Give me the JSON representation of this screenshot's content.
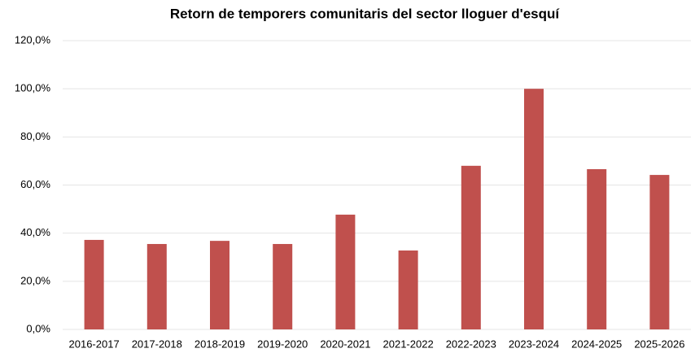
{
  "chart_data": {
    "type": "bar",
    "title": "Retorn de temporers comunitaris del sector lloguer d'esquí",
    "categories": [
      "2016-2017",
      "2017-2018",
      "2018-2019",
      "2019-2020",
      "2020-2021",
      "2021-2022",
      "2022-2023",
      "2023-2024",
      "2024-2025",
      "2025-2026"
    ],
    "values": [
      37.2,
      35.5,
      36.8,
      35.5,
      47.7,
      32.8,
      68.0,
      100.0,
      66.6,
      64.2
    ],
    "color": "#c0504d",
    "ylim": [
      0,
      120
    ],
    "yticks": [
      {
        "value": 0,
        "label": "0,0%"
      },
      {
        "value": 20,
        "label": "20,0%"
      },
      {
        "value": 40,
        "label": "40,0%"
      },
      {
        "value": 60,
        "label": "60,0%"
      },
      {
        "value": 80,
        "label": "80,0%"
      },
      {
        "value": 100,
        "label": "100,0%"
      },
      {
        "value": 120,
        "label": "120,0%"
      }
    ],
    "grid": true
  }
}
